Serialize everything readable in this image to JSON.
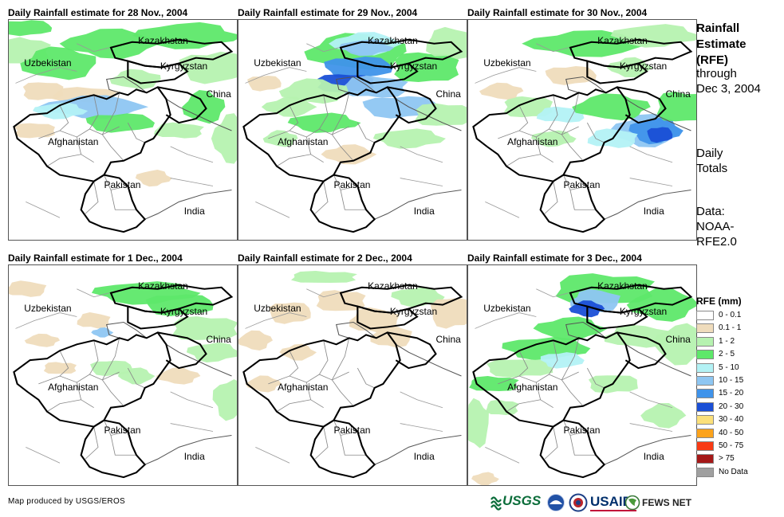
{
  "panels": [
    {
      "title": "Daily Rainfall estimate for 28 Nov., 2004",
      "scene": 0
    },
    {
      "title": "Daily Rainfall estimate for 29 Nov., 2004",
      "scene": 1
    },
    {
      "title": "Daily Rainfall estimate for 30 Nov., 2004",
      "scene": 2
    },
    {
      "title": "Daily Rainfall estimate for 1 Dec., 2004",
      "scene": 3
    },
    {
      "title": "Daily Rainfall estimate for 2 Dec., 2004",
      "scene": 4
    },
    {
      "title": "Daily Rainfall estimate for 3 Dec., 2004",
      "scene": 5
    }
  ],
  "place_labels": {
    "kazakhstan": "Kazakhstan",
    "uzbekistan": "Uzbekistan",
    "kyrgyzstan": "Kyrgyzstan",
    "china": "China",
    "afghanistan": "Afghanistan",
    "pakistan": "Pakistan",
    "india": "India"
  },
  "side": {
    "title_line1": "Rainfall",
    "title_line2": "Estimate",
    "title_line3": "(RFE)",
    "through": "through",
    "date": "Dec 3, 2004",
    "daily1": "Daily",
    "daily2": "Totals",
    "data1": "Data:",
    "data2": "NOAA-",
    "data3": "RFE2.0"
  },
  "legend": {
    "title": "RFE (mm)",
    "items": [
      {
        "label": "0 - 0.1",
        "color": "#ffffff"
      },
      {
        "label": "0.1 - 1",
        "color": "#efdcbc"
      },
      {
        "label": "1 - 2",
        "color": "#b6f2b0"
      },
      {
        "label": "2 - 5",
        "color": "#5ee86a"
      },
      {
        "label": "5 - 10",
        "color": "#b3f2f5"
      },
      {
        "label": "10 - 15",
        "color": "#8ec6f2"
      },
      {
        "label": "15 - 20",
        "color": "#3f93ea"
      },
      {
        "label": "20 - 30",
        "color": "#1a4fd6"
      },
      {
        "label": "30 - 40",
        "color": "#fbe07a"
      },
      {
        "label": "40 - 50",
        "color": "#fca31c"
      },
      {
        "label": "50 - 75",
        "color": "#f83a14"
      },
      {
        "label": "> 75",
        "color": "#a51818"
      },
      {
        "label": "No Data",
        "color": "#a0a0a0"
      }
    ]
  },
  "credit": "Map produced by USGS/EROS",
  "logos": {
    "usgs": "USGS",
    "usaid": "USAID",
    "fewsnet": "FEWS NET"
  }
}
